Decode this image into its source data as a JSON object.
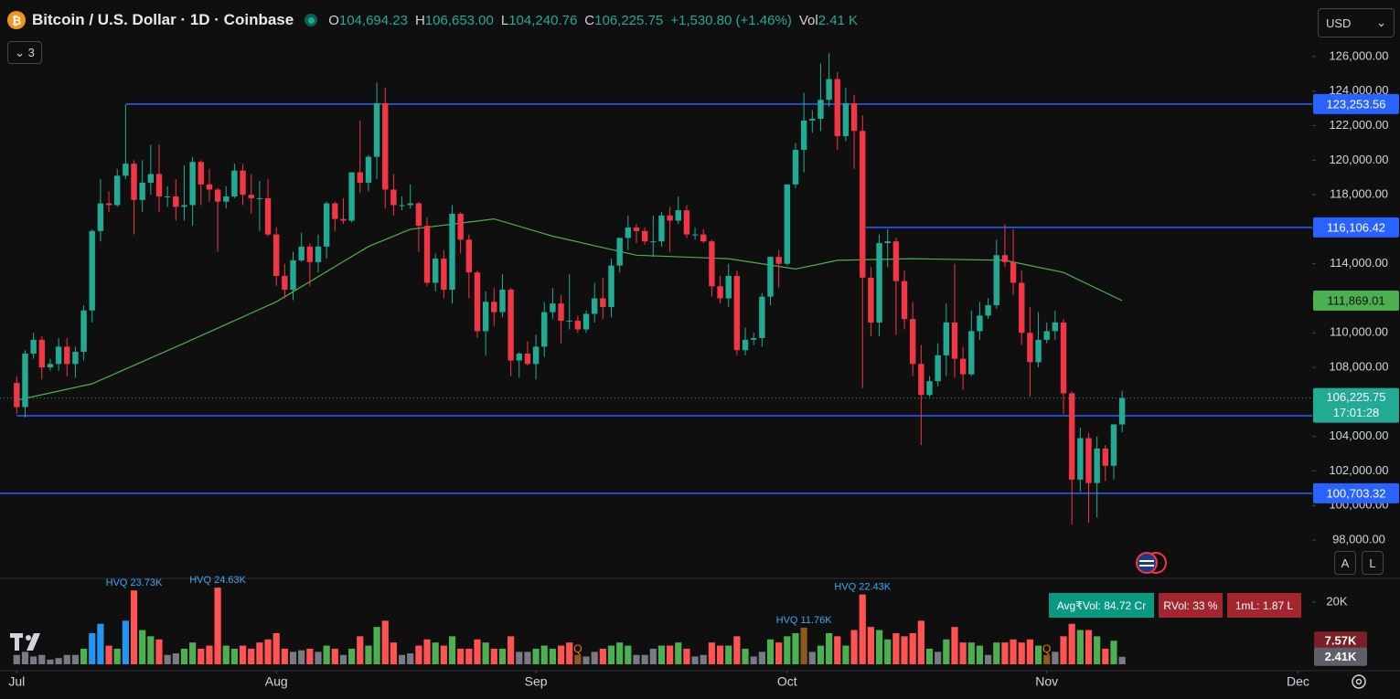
{
  "header": {
    "title": "Bitcoin / U.S. Dollar · 1D · Coinbase",
    "items": [
      {
        "key": "O",
        "label": "104,694.23"
      },
      {
        "key": "H",
        "label": "106,653.00"
      },
      {
        "key": "L",
        "label": "104,240.76"
      },
      {
        "key": "C",
        "label": "106,225.75"
      }
    ],
    "change": "+1,530.80 (+1.46%)",
    "vol_key": "Vol",
    "vol": "2.41 K",
    "indicator_count": "3",
    "currency": "USD"
  },
  "buttons": [
    "A",
    "L"
  ],
  "badges": [
    {
      "label": "Avg₹Vol: 84.72 Cr",
      "color": "#089981"
    },
    {
      "label": "RVol: 33 %",
      "color": "#a3262e"
    },
    {
      "label": "1mL: 1.87 L",
      "color": "#a3262e"
    }
  ],
  "chart_data": {
    "type": "candlestick",
    "up_color": "#22ab94",
    "down_color": "#f23645",
    "xlim": [
      -2,
      154.7
    ],
    "x_labels": [
      {
        "value": 0,
        "label": "Jul"
      },
      {
        "value": 31,
        "label": "Aug"
      },
      {
        "value": 62,
        "label": "Sep"
      },
      {
        "value": 92,
        "label": "Oct"
      },
      {
        "value": 123,
        "label": "Nov"
      },
      {
        "value": 153,
        "label": "Dec"
      }
    ],
    "ylim": [
      95777,
      129282
    ],
    "yticks": [
      {
        "value": 98000,
        "label": "98,000.00"
      },
      {
        "value": 100000,
        "label": "100,000.00"
      },
      {
        "value": 102000,
        "label": "102,000.00"
      },
      {
        "value": 104000,
        "label": "104,000.00"
      },
      {
        "value": 106000,
        "label": "106,000.00"
      },
      {
        "value": 108000,
        "label": "108,000.00"
      },
      {
        "value": 110000,
        "label": "110,000.00"
      },
      {
        "value": 112000,
        "label": "112,000.00"
      },
      {
        "value": 114000,
        "label": "114,000.00"
      },
      {
        "value": 116000,
        "label": "116,000.00"
      },
      {
        "value": 118000,
        "label": "118,000.00"
      },
      {
        "value": 120000,
        "label": "120,000.00"
      },
      {
        "value": 122000,
        "label": "122,000.00"
      },
      {
        "value": 124000,
        "label": "124,000.00"
      },
      {
        "value": 126000,
        "label": "126,000.00"
      }
    ],
    "grid": false,
    "candles": [
      [
        107100,
        107500,
        105300,
        105700
      ],
      [
        105700,
        109000,
        105100,
        108800
      ],
      [
        108800,
        110000,
        108500,
        109600
      ],
      [
        109600,
        109800,
        107300,
        108000
      ],
      [
        108000,
        108500,
        107800,
        108200
      ],
      [
        108200,
        109700,
        107800,
        109200
      ],
      [
        109200,
        109700,
        107500,
        108200
      ],
      [
        108200,
        109200,
        107400,
        108900
      ],
      [
        108900,
        111600,
        108400,
        111300
      ],
      [
        111300,
        116000,
        110600,
        115900
      ],
      [
        115900,
        118900,
        115300,
        117500
      ],
      [
        117500,
        118200,
        117000,
        117400
      ],
      [
        117400,
        119500,
        117300,
        119100
      ],
      [
        119100,
        123200,
        118900,
        119800
      ],
      [
        119800,
        120000,
        115700,
        117700
      ],
      [
        117700,
        120000,
        117000,
        118700
      ],
      [
        118700,
        120900,
        118000,
        119200
      ],
      [
        119200,
        120900,
        117000,
        117900
      ],
      [
        117900,
        118500,
        117300,
        117900
      ],
      [
        117900,
        118900,
        116500,
        117300
      ],
      [
        117300,
        119700,
        116500,
        117400
      ],
      [
        117400,
        120200,
        116200,
        119900
      ],
      [
        119900,
        120000,
        117400,
        118600
      ],
      [
        118600,
        119500,
        117600,
        118300
      ],
      [
        118300,
        118400,
        114700,
        117600
      ],
      [
        117600,
        118500,
        117200,
        117900
      ],
      [
        117900,
        119800,
        117800,
        119400
      ],
      [
        119400,
        119800,
        117400,
        118000
      ],
      [
        118000,
        119200,
        116900,
        117800
      ],
      [
        117800,
        118800,
        115900,
        117800
      ],
      [
        117800,
        118900,
        115600,
        115700
      ],
      [
        115700,
        116100,
        112700,
        113300
      ],
      [
        113300,
        114000,
        112000,
        112500
      ],
      [
        112500,
        114700,
        111900,
        114200
      ],
      [
        114200,
        115800,
        114100,
        115000
      ],
      [
        115000,
        115200,
        112700,
        114100
      ],
      [
        114100,
        115700,
        113500,
        115000
      ],
      [
        115000,
        117600,
        114300,
        117500
      ],
      [
        117500,
        117600,
        115900,
        116600
      ],
      [
        116600,
        117800,
        116300,
        116500
      ],
      [
        116500,
        119300,
        116400,
        119300
      ],
      [
        119300,
        122300,
        118100,
        118700
      ],
      [
        118700,
        120300,
        118200,
        120200
      ],
      [
        120200,
        124500,
        118900,
        123300
      ],
      [
        123300,
        124200,
        117200,
        118300
      ],
      [
        118300,
        119200,
        116800,
        117400
      ],
      [
        117400,
        117900,
        117100,
        117400
      ],
      [
        117400,
        118600,
        117200,
        117500
      ],
      [
        117500,
        117600,
        114700,
        116200
      ],
      [
        116200,
        116700,
        112700,
        112900
      ],
      [
        112900,
        114600,
        112400,
        114300
      ],
      [
        114300,
        114800,
        112000,
        112500
      ],
      [
        112500,
        117400,
        111700,
        116900
      ],
      [
        116900,
        117000,
        114600,
        115400
      ],
      [
        115400,
        115700,
        112000,
        113500
      ],
      [
        113500,
        113600,
        109700,
        110100
      ],
      [
        110100,
        112400,
        108700,
        111800
      ],
      [
        111800,
        112600,
        110400,
        111200
      ],
      [
        111200,
        113400,
        110900,
        112500
      ],
      [
        112500,
        112600,
        107500,
        108400
      ],
      [
        108400,
        108900,
        107400,
        108800
      ],
      [
        108800,
        109500,
        108100,
        108200
      ],
      [
        108200,
        109900,
        107300,
        109200
      ],
      [
        109200,
        111800,
        108600,
        111200
      ],
      [
        111200,
        112600,
        110800,
        111700
      ],
      [
        111700,
        112200,
        109400,
        110700
      ],
      [
        110700,
        113400,
        110200,
        110700
      ],
      [
        110700,
        111000,
        110000,
        110200
      ],
      [
        110200,
        111300,
        110000,
        111100
      ],
      [
        111100,
        112900,
        110600,
        112000
      ],
      [
        112000,
        113200,
        110800,
        111500
      ],
      [
        111500,
        114300,
        110900,
        113900
      ],
      [
        113900,
        115500,
        113500,
        115500
      ],
      [
        115500,
        116800,
        114800,
        116100
      ],
      [
        116100,
        116300,
        115200,
        115900
      ],
      [
        115900,
        116100,
        115100,
        115300
      ],
      [
        115300,
        116800,
        114400,
        115300
      ],
      [
        115300,
        117000,
        115000,
        116800
      ],
      [
        116800,
        117300,
        114700,
        116500
      ],
      [
        116500,
        117900,
        116300,
        117100
      ],
      [
        117100,
        117400,
        115500,
        115700
      ],
      [
        115700,
        116100,
        115400,
        115700
      ],
      [
        115700,
        116000,
        115200,
        115300
      ],
      [
        115300,
        115400,
        112100,
        112700
      ],
      [
        112700,
        113300,
        111700,
        112000
      ],
      [
        112000,
        114000,
        111500,
        113300
      ],
      [
        113300,
        113600,
        108700,
        109000
      ],
      [
        109000,
        110300,
        108700,
        109600
      ],
      [
        109600,
        110000,
        109300,
        109700
      ],
      [
        109700,
        112300,
        109200,
        112100
      ],
      [
        112100,
        114400,
        111600,
        114400
      ],
      [
        114400,
        114800,
        112600,
        114000
      ],
      [
        114000,
        118600,
        113900,
        118600
      ],
      [
        118600,
        121000,
        118400,
        120600
      ],
      [
        120600,
        123900,
        119300,
        122300
      ],
      [
        122300,
        122900,
        121600,
        122400
      ],
      [
        122400,
        125600,
        121700,
        123500
      ],
      [
        123500,
        126200,
        123100,
        124700
      ],
      [
        124700,
        125100,
        120600,
        121400
      ],
      [
        121400,
        124200,
        121100,
        123300
      ],
      [
        123300,
        123800,
        119500,
        121700
      ],
      [
        121700,
        122600,
        106800,
        113200
      ],
      [
        113200,
        113800,
        109800,
        110600
      ],
      [
        110600,
        115700,
        109800,
        115200
      ],
      [
        115200,
        116000,
        113800,
        115300
      ],
      [
        115300,
        115500,
        109900,
        113000
      ],
      [
        113000,
        113600,
        110200,
        110800
      ],
      [
        110800,
        111800,
        107500,
        108200
      ],
      [
        108200,
        109300,
        103500,
        106400
      ],
      [
        106400,
        107500,
        106300,
        107200
      ],
      [
        107200,
        109400,
        106900,
        108700
      ],
      [
        108700,
        111700,
        107500,
        110600
      ],
      [
        110600,
        114000,
        107400,
        108500
      ],
      [
        108500,
        109200,
        106700,
        107600
      ],
      [
        107600,
        111300,
        107500,
        110100
      ],
      [
        110100,
        111800,
        109600,
        111000
      ],
      [
        111000,
        112000,
        110800,
        111600
      ],
      [
        111600,
        115400,
        111400,
        114500
      ],
      [
        114500,
        116300,
        113800,
        114100
      ],
      [
        114100,
        116000,
        112200,
        112900
      ],
      [
        112900,
        113600,
        109300,
        110000
      ],
      [
        110000,
        111500,
        106300,
        108300
      ],
      [
        108300,
        111200,
        108000,
        109600
      ],
      [
        109600,
        110600,
        109400,
        110100
      ],
      [
        110100,
        111300,
        109600,
        110600
      ],
      [
        110600,
        110800,
        105300,
        106500
      ],
      [
        106500,
        106600,
        98900,
        101500
      ],
      [
        101500,
        104500,
        100800,
        103900
      ],
      [
        103900,
        104200,
        99000,
        101300
      ],
      [
        101300,
        104000,
        99300,
        103300
      ],
      [
        103300,
        103500,
        101400,
        102300
      ],
      [
        102300,
        104700,
        101500,
        104700
      ],
      [
        104694.23,
        106653,
        104240.76,
        106225.75
      ]
    ],
    "ma": {
      "color": "#4caf50",
      "x": [
        0,
        9,
        20,
        31,
        42,
        47,
        57,
        64,
        74,
        85,
        93,
        98,
        107,
        118,
        125,
        132
      ],
      "values": [
        106100,
        107050,
        109400,
        111800,
        115000,
        116000,
        116600,
        115600,
        114500,
        114300,
        113700,
        114200,
        114300,
        114200,
        113500,
        111869.01
      ],
      "label": "111,869.01"
    },
    "levels": [
      {
        "value": 123253.56,
        "label": "123,253.56"
      },
      {
        "value": 116106.42,
        "label": "116,106.42"
      },
      {
        "value": 100703.32,
        "label": "100,703.32"
      },
      {
        "value": 105200
      }
    ],
    "level_color": "#2962ff",
    "last": {
      "value": 106225.75,
      "label": "106,225.75",
      "countdown": "17:01:28",
      "color": "#22ab94"
    },
    "vlim": [
      0,
      27.6
    ],
    "vticks": [
      {
        "value": 20,
        "label": "20K"
      }
    ],
    "volumes": [
      3,
      4,
      2.5,
      3,
      1.5,
      2,
      3,
      3,
      5,
      10,
      13,
      6,
      5,
      14,
      23.73,
      11,
      9,
      8,
      3,
      3.5,
      5,
      7,
      5,
      6,
      24.63,
      6,
      5,
      6,
      5,
      7,
      8,
      10,
      5,
      4,
      4.5,
      5,
      4,
      6,
      5,
      3,
      5,
      9,
      6,
      12,
      14,
      7,
      3,
      3.5,
      6,
      8,
      7,
      6,
      9,
      5,
      5,
      8,
      7,
      5,
      5,
      9,
      4,
      4,
      5,
      6,
      5,
      6,
      7,
      3,
      2.5,
      4,
      5,
      6,
      7,
      6,
      3,
      3,
      5,
      6,
      6,
      7,
      5,
      2.5,
      3,
      7,
      6,
      6,
      9,
      5,
      2.5,
      4,
      8,
      7,
      9,
      10,
      11.76,
      4,
      6,
      10,
      9,
      6,
      11,
      22.43,
      12,
      11,
      8,
      10,
      9,
      10,
      14,
      5,
      4,
      8,
      12,
      7,
      7,
      6,
      3,
      7,
      7,
      8,
      7,
      8,
      6,
      3,
      4,
      9,
      13,
      11,
      11,
      9,
      5,
      7.57,
      2.41
    ],
    "volume_color_keys": "nnnnnnnnubbdubduudnnuuddduuddddddnndnudnuduuddnnddududddududnnuuuddqnnduuunnnududnnddudunnuduuqnuududdduuddddunudduunudddduqnddududun",
    "volume_palette": {
      "u": "#4caf50",
      "d": "#ff5252",
      "n": "#787b86",
      "b": "#2196f3",
      "q": "#8d5a1c"
    },
    "volume_annotations": [
      {
        "index": 14,
        "label": "HVQ 23.73K"
      },
      {
        "index": 24,
        "label": "HVQ 24.63K"
      },
      {
        "index": 94,
        "label": "HVQ 11.76K"
      },
      {
        "index": 101,
        "label": "HVQ 22.43K"
      }
    ],
    "volume_markers": [
      {
        "index": 67,
        "label": "Q"
      },
      {
        "index": 123,
        "label": "Q"
      }
    ],
    "volume_last_labels": [
      {
        "index": 131,
        "label": "7.57K",
        "color": "#7b1f26"
      },
      {
        "index": 132,
        "label": "2.41K",
        "color": "#5d606b"
      }
    ]
  }
}
